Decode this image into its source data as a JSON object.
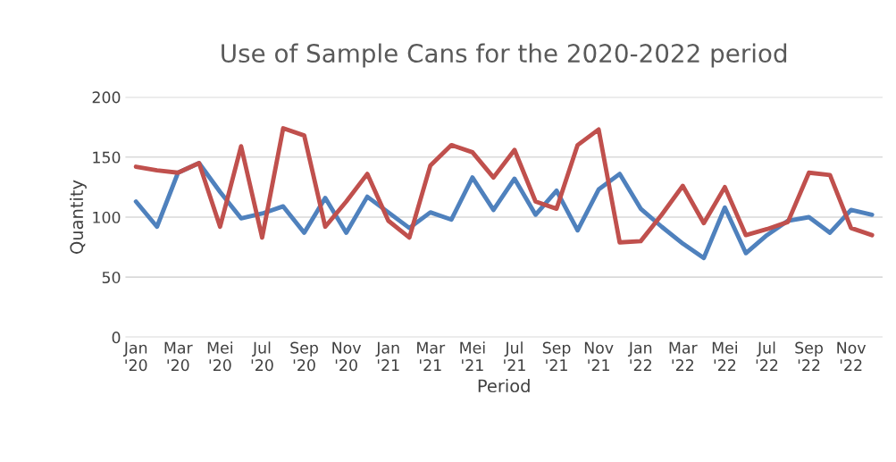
{
  "chart_data": {
    "type": "line",
    "title": "Use of Sample Cans for the 2020-2022 period",
    "xlabel": "Period",
    "ylabel": "Quantity",
    "categories": [
      "Jan\n'20",
      null,
      "Mar\n'20",
      null,
      "Mei\n'20",
      null,
      "Jul\n'20",
      null,
      "Sep\n'20",
      null,
      "Nov\n'20",
      null,
      "Jan\n'21",
      null,
      "Mar\n'21",
      null,
      "Mei\n'21",
      null,
      "Jul\n'21",
      null,
      "Sep\n'21",
      null,
      "Nov\n'21",
      null,
      "Jan\n'22",
      null,
      "Mar\n'22",
      null,
      "Mei\n'22",
      null,
      "Jul\n'22",
      null,
      "Sep\n'22",
      null,
      "Nov\n'22",
      null
    ],
    "series": [
      {
        "color": "#4f81bd",
        "values": [
          113,
          92,
          137,
          145,
          121,
          99,
          103,
          109,
          87,
          116,
          87,
          117,
          104,
          91,
          104,
          98,
          133,
          106,
          132,
          102,
          122,
          89,
          123,
          136,
          107,
          92,
          78,
          66,
          108,
          70,
          85,
          97,
          100,
          87,
          106,
          102
        ]
      },
      {
        "color": "#c0504d",
        "values": [
          142,
          139,
          137,
          145,
          92,
          159,
          83,
          174,
          168,
          92,
          113,
          136,
          97,
          83,
          143,
          160,
          154,
          133,
          156,
          113,
          107,
          160,
          173,
          79,
          80,
          102,
          126,
          95,
          125,
          85,
          90,
          96,
          137,
          135,
          91,
          85
        ]
      }
    ],
    "ylim": [
      0,
      200
    ],
    "yticks": [
      0,
      50,
      100,
      150,
      200
    ],
    "grid": "y",
    "marker": "none",
    "line_style": "solid"
  }
}
